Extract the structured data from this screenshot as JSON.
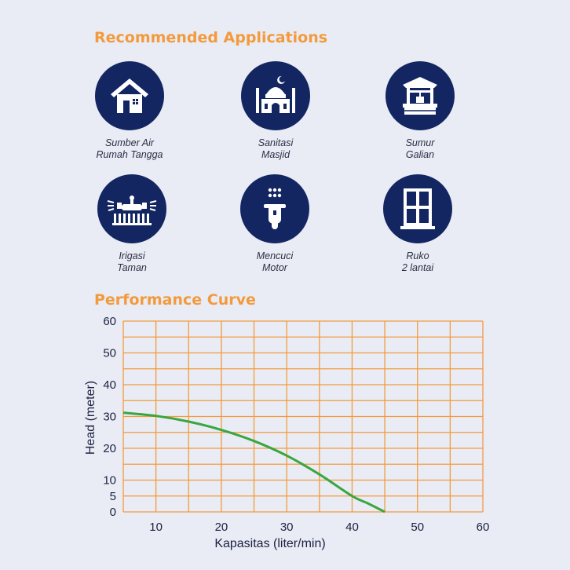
{
  "section_titles": {
    "applications": "Recommended Applications",
    "performance": "Performance Curve"
  },
  "applications": [
    {
      "icon": "house-icon",
      "line1": "Sumber Air",
      "line2": "Rumah Tangga"
    },
    {
      "icon": "mosque-icon",
      "line1": "Sanitasi",
      "line2": "Masjid"
    },
    {
      "icon": "well-icon",
      "line1": "Sumur",
      "line2": "Galian"
    },
    {
      "icon": "sprinkler-icon",
      "line1": "Irigasi",
      "line2": "Taman"
    },
    {
      "icon": "scooter-icon",
      "line1": "Mencuci",
      "line2": "Motor"
    },
    {
      "icon": "window-icon",
      "line1": "Ruko",
      "line2": "2 lantai"
    }
  ],
  "colors": {
    "accent": "#f39a3d",
    "icon_bg": "#132662",
    "grid": "#f39a3d",
    "curve": "#3aa640",
    "background": "#e9ecf4"
  },
  "chart_data": {
    "type": "line",
    "xlabel": "Kapasitas (liter/min)",
    "ylabel": "Head (meter)",
    "xlim": [
      5,
      60
    ],
    "ylim": [
      0,
      60
    ],
    "x_ticks": [
      10,
      20,
      30,
      40,
      50,
      60
    ],
    "y_ticks": [
      0,
      5,
      10,
      20,
      30,
      40,
      50,
      60
    ],
    "grid": true,
    "series": [
      {
        "x": [
          5,
          10,
          15,
          20,
          25,
          30,
          35,
          40,
          42.5,
          45
        ],
        "y": [
          31.2,
          30.2,
          28.4,
          25.8,
          22.3,
          17.7,
          11.8,
          5.0,
          2.6,
          0
        ]
      }
    ]
  }
}
